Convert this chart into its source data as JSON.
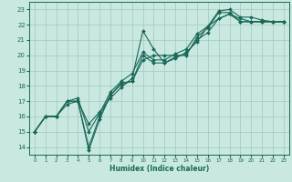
{
  "xlabel": "Humidex (Indice chaleur)",
  "ylabel": "",
  "background_color": "#c8e8e0",
  "grid_color": "#a0c8c0",
  "line_color": "#1a6858",
  "xlim": [
    -0.5,
    23.5
  ],
  "ylim": [
    13.5,
    23.5
  ],
  "yticks": [
    14,
    15,
    16,
    17,
    18,
    19,
    20,
    21,
    22,
    23
  ],
  "xticks": [
    0,
    1,
    2,
    3,
    4,
    5,
    6,
    7,
    8,
    9,
    10,
    11,
    12,
    13,
    14,
    15,
    16,
    17,
    18,
    19,
    20,
    21,
    22,
    23
  ],
  "series": [
    [
      15.0,
      16.0,
      16.0,
      17.0,
      17.0,
      13.8,
      15.8,
      17.4,
      18.2,
      18.3,
      19.7,
      20.0,
      20.0,
      20.0,
      20.0,
      21.2,
      21.8,
      22.8,
      22.8,
      22.2,
      22.2,
      22.2,
      22.2,
      22.2
    ],
    [
      15.0,
      16.0,
      16.0,
      16.8,
      17.0,
      15.5,
      16.3,
      17.2,
      17.9,
      18.5,
      21.6,
      20.4,
      19.5,
      19.8,
      20.2,
      20.9,
      21.9,
      22.4,
      22.7,
      22.4,
      22.2,
      22.2,
      22.2,
      22.2
    ],
    [
      15.0,
      16.0,
      16.0,
      17.0,
      17.2,
      15.0,
      16.2,
      17.6,
      18.3,
      18.8,
      20.2,
      19.7,
      19.7,
      20.1,
      20.4,
      21.4,
      21.9,
      22.9,
      23.0,
      22.5,
      22.5,
      22.3,
      22.2,
      22.2
    ],
    [
      15.0,
      16.0,
      16.0,
      17.0,
      17.0,
      14.0,
      16.0,
      17.4,
      18.1,
      18.3,
      20.0,
      19.5,
      19.5,
      19.9,
      20.1,
      21.0,
      21.5,
      22.4,
      22.7,
      22.2,
      22.2,
      22.2,
      22.2,
      22.2
    ]
  ]
}
